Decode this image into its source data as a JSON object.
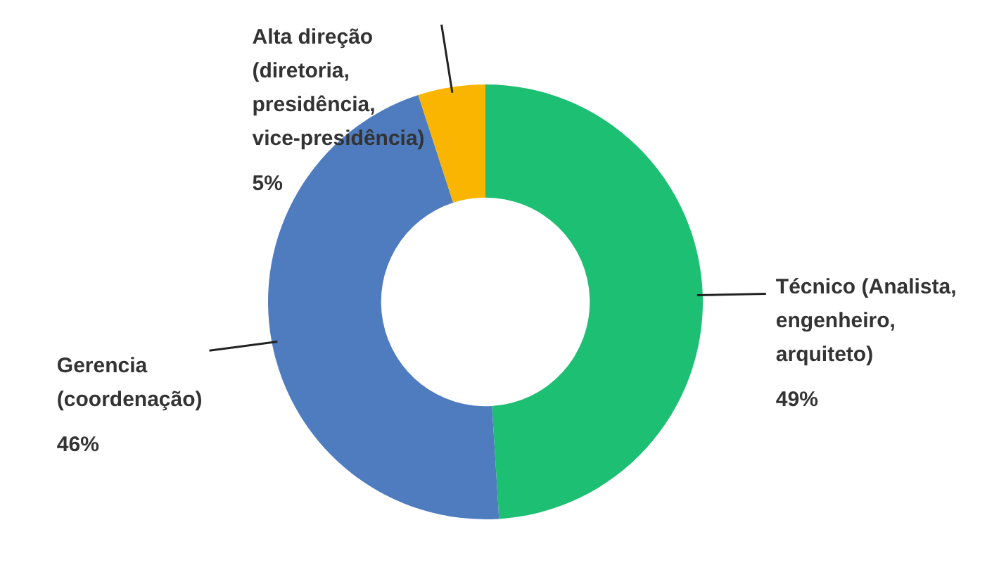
{
  "chart_data": {
    "type": "donut",
    "categories": [
      "Técnico (Analista, engenheiro, arquiteto)",
      "Gerencia (coordenação)",
      "Alta direção (diretoria, presidência, vice-presidência)"
    ],
    "values": [
      49,
      46,
      5
    ],
    "value_labels": [
      "49%",
      "46%",
      "5%"
    ],
    "colors": [
      "#1dbf72",
      "#4f7cbe",
      "#f9b500"
    ],
    "legend": false
  }
}
